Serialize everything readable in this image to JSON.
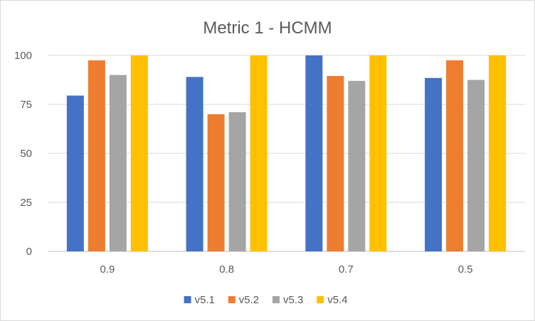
{
  "chart_data": {
    "type": "bar",
    "title": "Metric 1 - HCMM",
    "xlabel": "",
    "ylabel": "",
    "categories": [
      "0.9",
      "0.8",
      "0.7",
      "0.5"
    ],
    "ylim": [
      0,
      100
    ],
    "yticks": [
      "0",
      "25",
      "50",
      "75",
      "100"
    ],
    "grid": true,
    "legend_position": "bottom",
    "series": [
      {
        "name": "v5.1",
        "color": "#4472c4",
        "values": [
          79.5,
          89,
          100,
          88.5
        ]
      },
      {
        "name": "v5.2",
        "color": "#ed7d31",
        "values": [
          97.5,
          70,
          89.5,
          97.5
        ]
      },
      {
        "name": "v5.3",
        "color": "#a5a5a5",
        "values": [
          90,
          71,
          87,
          87.5
        ]
      },
      {
        "name": "v5.4",
        "color": "#ffc000",
        "values": [
          100,
          100,
          100,
          100
        ]
      }
    ]
  }
}
